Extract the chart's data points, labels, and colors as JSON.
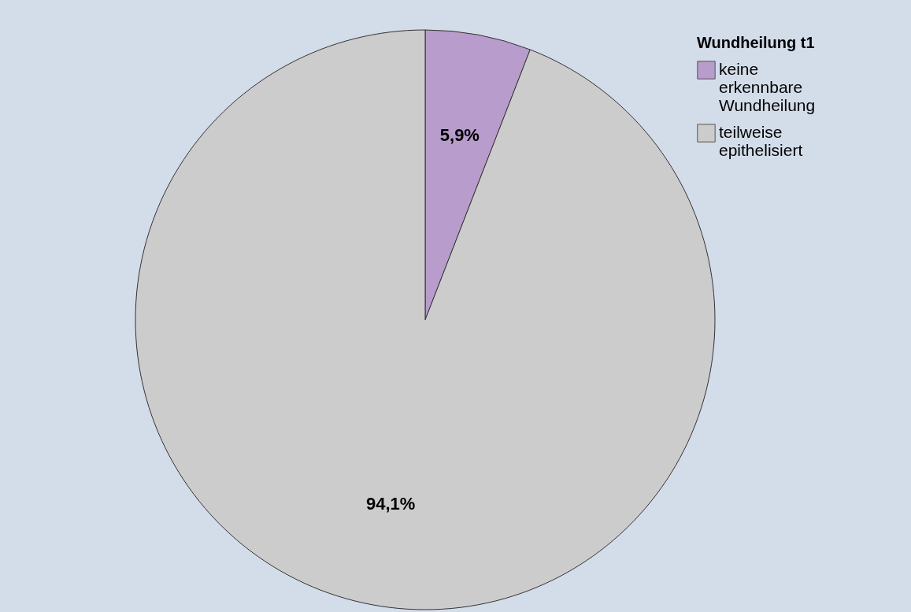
{
  "chart_data": {
    "type": "pie",
    "legend_title": "Wundheilung t1",
    "categories": [
      "keine erkennbare Wundheilung",
      "teilweise epithelisiert"
    ],
    "values": [
      5.9,
      94.1
    ],
    "colors": [
      "#b89ccb",
      "#cccccc"
    ],
    "value_labels": [
      "5,9%",
      "94,1%"
    ],
    "legend": "top right"
  }
}
